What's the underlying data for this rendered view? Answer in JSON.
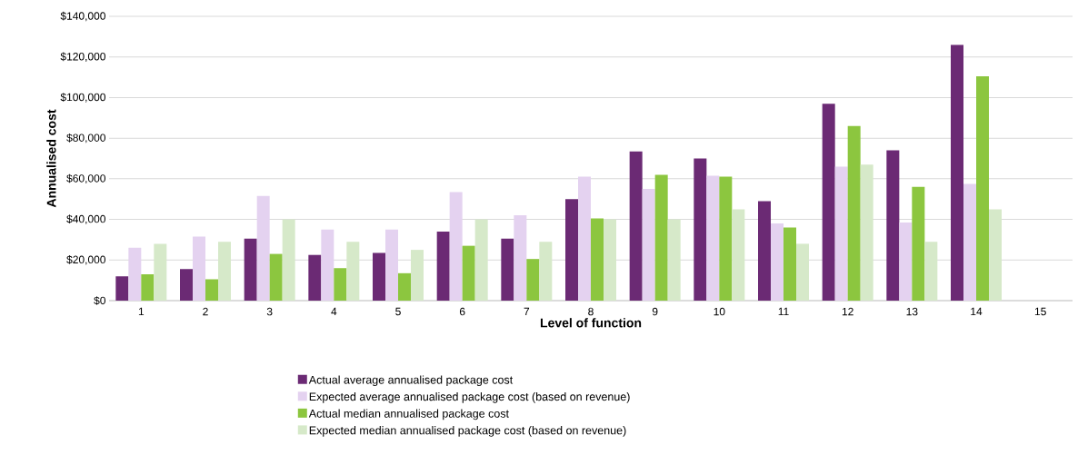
{
  "chart_data": {
    "type": "bar",
    "xlabel": "Level of function",
    "ylabel": "Annualised cost",
    "categories": [
      "1",
      "2",
      "3",
      "4",
      "5",
      "6",
      "7",
      "8",
      "9",
      "10",
      "11",
      "12",
      "13",
      "14",
      "15"
    ],
    "series": [
      {
        "name": "Actual average annualised package cost",
        "color": "#6b2a74",
        "values": [
          12000,
          15500,
          30500,
          22500,
          23500,
          34000,
          30500,
          50000,
          73500,
          70000,
          49000,
          97000,
          74000,
          126000,
          null
        ]
      },
      {
        "name": "Expected average annualised package cost (based on revenue)",
        "color": "#e4d2f0",
        "values": [
          26000,
          31500,
          51500,
          35000,
          35000,
          53500,
          42000,
          61000,
          55000,
          61500,
          38000,
          66000,
          38500,
          57500,
          null
        ]
      },
      {
        "name": "Actual median annualised package cost",
        "color": "#8cc63f",
        "values": [
          13000,
          10500,
          23000,
          16000,
          13500,
          27000,
          20500,
          40500,
          62000,
          61000,
          36000,
          86000,
          56000,
          110500,
          null
        ]
      },
      {
        "name": "Expected median annualised package cost (based on revenue)",
        "color": "#d6e9c9",
        "values": [
          28000,
          29000,
          40000,
          29000,
          25000,
          40000,
          29000,
          40000,
          40000,
          45000,
          28000,
          67000,
          29000,
          45000,
          null
        ]
      }
    ],
    "ylim": [
      0,
      140000
    ],
    "yticks": [
      {
        "value": 0,
        "label": "$0"
      },
      {
        "value": 20000,
        "label": "$20,000"
      },
      {
        "value": 40000,
        "label": "$40,000"
      },
      {
        "value": 60000,
        "label": "$60,000"
      },
      {
        "value": 80000,
        "label": "$80,000"
      },
      {
        "value": 100000,
        "label": "$100,000"
      },
      {
        "value": 120000,
        "label": "$120,000"
      },
      {
        "value": 140000,
        "label": "$140,000"
      }
    ],
    "grid": "y",
    "legend": "bottom"
  }
}
